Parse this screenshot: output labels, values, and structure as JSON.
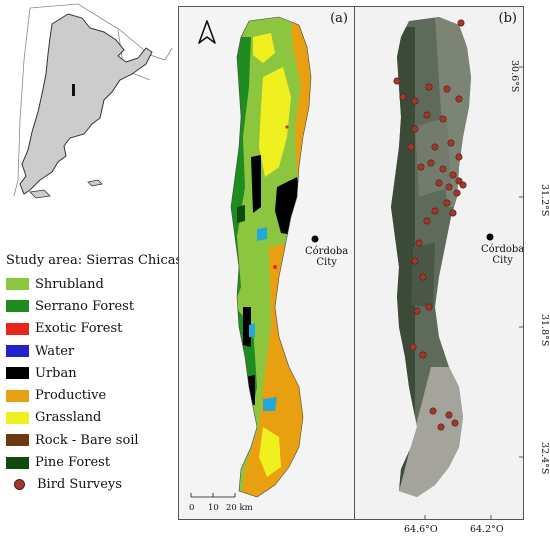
{
  "legend": {
    "title": "Study area: Sierras Chicas",
    "items": [
      {
        "label": "Shrubland",
        "color": "#8cc63f"
      },
      {
        "label": "Serrano Forest",
        "color": "#1e8c1e"
      },
      {
        "label": "Exotic Forest",
        "color": "#e8261c"
      },
      {
        "label": "Water",
        "color": "#2222cc"
      },
      {
        "label": "Urban",
        "color": "#000000"
      },
      {
        "label": "Productive",
        "color": "#e8a010"
      },
      {
        "label": "Grassland",
        "color": "#f0f020"
      },
      {
        "label": "Rock - Bare soil",
        "color": "#6b3a12"
      },
      {
        "label": "Pine Forest",
        "color": "#0f4a0f"
      }
    ],
    "bird_surveys": {
      "label": "Bird Surveys",
      "color": "#9c3a2e"
    }
  },
  "panel_a": {
    "label": "(a)",
    "city_name": "Córdoba",
    "city_suffix": "City",
    "scale": {
      "ticks": [
        "0",
        "10",
        "20 km"
      ]
    }
  },
  "panel_b": {
    "label": "(b)",
    "city_name": "Córdoba",
    "city_suffix": "City",
    "lat_labels": [
      "30.6°S",
      "31.2°S",
      "31.8°S",
      "32.4°S"
    ],
    "lon_labels": [
      "64.6°O",
      "64.2°O"
    ]
  },
  "icons": {
    "north_arrow": "north-arrow-icon"
  }
}
